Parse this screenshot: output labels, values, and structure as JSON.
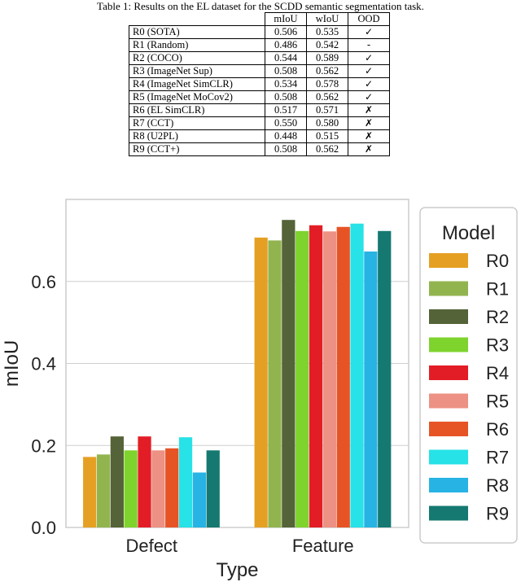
{
  "caption": "Table 1: Results on the EL dataset for the SCDD semantic segmentation task.",
  "table": {
    "headers": [
      "mIoU",
      "wIoU",
      "OOD"
    ],
    "rows": [
      {
        "model": "R0 (SOTA)",
        "miou": "0.506",
        "wiou": "0.535",
        "ood": "✓",
        "bold_miou": false,
        "bold_wiou": false
      },
      {
        "model": "R1 (Random)",
        "miou": "0.486",
        "wiou": "0.542",
        "ood": "-",
        "bold_miou": false,
        "bold_wiou": false
      },
      {
        "model": "R2 (COCO)",
        "miou": "0.544",
        "wiou": "0.589",
        "ood": "✓",
        "bold_miou": false,
        "bold_wiou": true
      },
      {
        "model": "R3 (ImageNet Sup)",
        "miou": "0.508",
        "wiou": "0.562",
        "ood": "✓",
        "bold_miou": false,
        "bold_wiou": false
      },
      {
        "model": "R4 (ImageNet SimCLR)",
        "miou": "0.534",
        "wiou": "0.578",
        "ood": "✓",
        "bold_miou": false,
        "bold_wiou": false
      },
      {
        "model": "R5 (ImageNet MoCov2)",
        "miou": "0.508",
        "wiou": "0.562",
        "ood": "✓",
        "bold_miou": false,
        "bold_wiou": false
      },
      {
        "model": "R6 (EL SimCLR)",
        "miou": "0.517",
        "wiou": "0.571",
        "ood": "✗",
        "bold_miou": false,
        "bold_wiou": false
      },
      {
        "model": "R7 (CCT)",
        "miou": "0.550",
        "wiou": "0.580",
        "ood": "✗",
        "bold_miou": true,
        "bold_wiou": false
      },
      {
        "model": "R8 (U2PL)",
        "miou": "0.448",
        "wiou": "0.515",
        "ood": "✗",
        "bold_miou": false,
        "bold_wiou": false
      },
      {
        "model": "R9 (CCT+)",
        "miou": "0.508",
        "wiou": "0.562",
        "ood": "✗",
        "bold_miou": false,
        "bold_wiou": false
      }
    ]
  },
  "chart_data": {
    "type": "bar",
    "title": "",
    "xlabel": "Type",
    "ylabel": "mIoU",
    "categories": [
      "Defect",
      "Feature"
    ],
    "yticks": [
      0.0,
      0.2,
      0.4,
      0.6
    ],
    "ylim": [
      0,
      0.8
    ],
    "grid": true,
    "legend": {
      "title": "Model",
      "placement": "right"
    },
    "series": [
      {
        "name": "R0",
        "color": "#e5a023",
        "values": [
          0.172,
          0.707
        ]
      },
      {
        "name": "R1",
        "color": "#92b44f",
        "values": [
          0.178,
          0.7
        ]
      },
      {
        "name": "R2",
        "color": "#556338",
        "values": [
          0.222,
          0.75
        ]
      },
      {
        "name": "R3",
        "color": "#7ed32d",
        "values": [
          0.188,
          0.723
        ]
      },
      {
        "name": "R4",
        "color": "#e31d26",
        "values": [
          0.222,
          0.737
        ]
      },
      {
        "name": "R5",
        "color": "#ec9183",
        "values": [
          0.188,
          0.722
        ]
      },
      {
        "name": "R6",
        "color": "#e65426",
        "values": [
          0.193,
          0.733
        ]
      },
      {
        "name": "R7",
        "color": "#27e2e6",
        "values": [
          0.22,
          0.741
        ]
      },
      {
        "name": "R8",
        "color": "#27b3e4",
        "values": [
          0.134,
          0.673
        ]
      },
      {
        "name": "R9",
        "color": "#157972",
        "values": [
          0.188,
          0.723
        ]
      }
    ]
  }
}
